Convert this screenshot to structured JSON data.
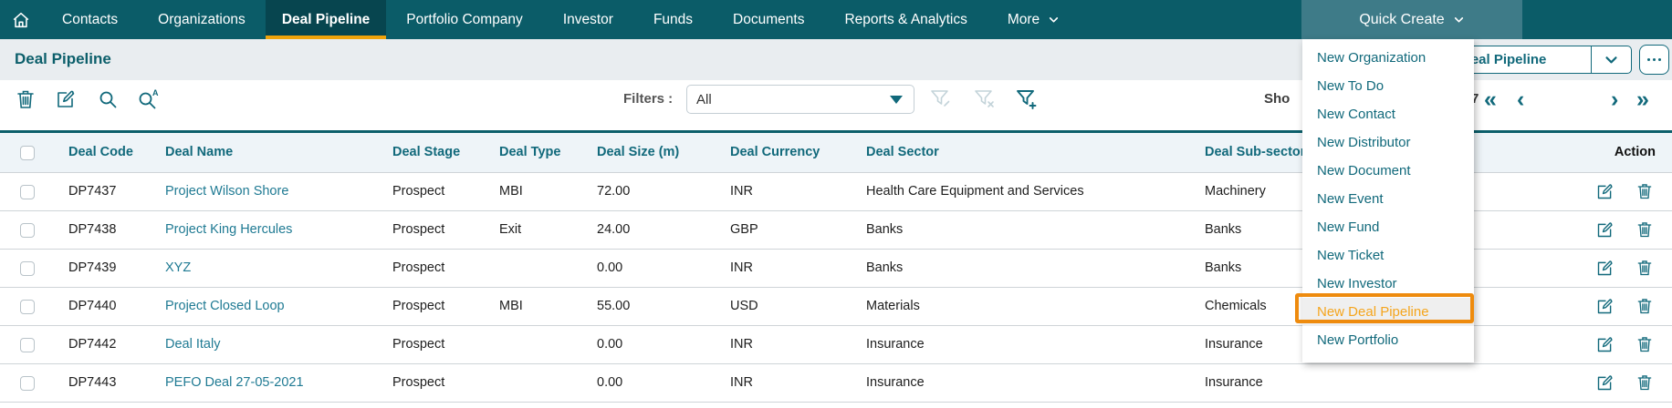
{
  "colors": {
    "nav_background": "#0b5c68",
    "active_tab_background": "#07454f",
    "active_tab_underline": "#f0a30b",
    "open_tab_background": "#3e7b88",
    "accent_teal": "#11697b",
    "link_teal": "#1f7a93",
    "highlight_orange_border": "#ee8b0e",
    "highlight_orange_text": "#f5a51d"
  },
  "nav": {
    "items": [
      {
        "label": "Contacts",
        "active": false,
        "caret": false,
        "open": false
      },
      {
        "label": "Organizations",
        "active": false,
        "caret": false,
        "open": false
      },
      {
        "label": "Deal Pipeline",
        "active": true,
        "caret": false,
        "open": false
      },
      {
        "label": "Portfolio Company",
        "active": false,
        "caret": false,
        "open": false
      },
      {
        "label": "Investor",
        "active": false,
        "caret": false,
        "open": false
      },
      {
        "label": "Funds",
        "active": false,
        "caret": false,
        "open": false
      },
      {
        "label": "Documents",
        "active": false,
        "caret": false,
        "open": false
      },
      {
        "label": "Reports & Analytics",
        "active": false,
        "caret": false,
        "open": false
      },
      {
        "label": "More",
        "active": false,
        "caret": true,
        "open": false
      },
      {
        "label": "Quick Create",
        "active": false,
        "caret": true,
        "open": true
      }
    ]
  },
  "page": {
    "title": "Deal Pipeline"
  },
  "view_selector": {
    "value": "Deal Pipeline"
  },
  "toolbar": {
    "filters_label": "Filters :",
    "filter_value": "All",
    "showing_fragment": "Sho",
    "count_fragment": "7",
    "icons": [
      "delete-icon",
      "edit-icon",
      "search-icon",
      "advanced-search-icon",
      "filter-edit-icon",
      "filter-clear-icon",
      "filter-add-icon"
    ],
    "pagination": [
      "first-page",
      "previous-page",
      "next-page",
      "last-page"
    ]
  },
  "table": {
    "headers": [
      {
        "key": "code",
        "label": "Deal Code"
      },
      {
        "key": "name",
        "label": "Deal Name"
      },
      {
        "key": "stage",
        "label": "Deal Stage"
      },
      {
        "key": "type",
        "label": "Deal Type"
      },
      {
        "key": "size",
        "label": "Deal Size (m)"
      },
      {
        "key": "currency",
        "label": "Deal Currency"
      },
      {
        "key": "sector",
        "label": "Deal Sector"
      },
      {
        "key": "subsector",
        "label": "Deal Sub-sector"
      },
      {
        "key": "action",
        "label": "Action"
      }
    ],
    "rows": [
      {
        "code": "DP7437",
        "name": "Project Wilson Shore",
        "stage": "Prospect",
        "type": "MBI",
        "size": "72.00",
        "currency": "INR",
        "sector": "Health Care Equipment and Services",
        "subsector": "Machinery"
      },
      {
        "code": "DP7438",
        "name": "Project King Hercules",
        "stage": "Prospect",
        "type": "Exit",
        "size": "24.00",
        "currency": "GBP",
        "sector": "Banks",
        "subsector": "Banks"
      },
      {
        "code": "DP7439",
        "name": "XYZ",
        "stage": "Prospect",
        "type": "",
        "size": "0.00",
        "currency": "INR",
        "sector": "Banks",
        "subsector": "Banks"
      },
      {
        "code": "DP7440",
        "name": "Project Closed Loop",
        "stage": "Prospect",
        "type": "MBI",
        "size": "55.00",
        "currency": "USD",
        "sector": "Materials",
        "subsector": "Chemicals"
      },
      {
        "code": "DP7442",
        "name": "Deal Italy",
        "stage": "Prospect",
        "type": "",
        "size": "0.00",
        "currency": "INR",
        "sector": "Insurance",
        "subsector": "Insurance"
      },
      {
        "code": "DP7443",
        "name": "PEFO Deal 27-05-2021",
        "stage": "Prospect",
        "type": "",
        "size": "0.00",
        "currency": "INR",
        "sector": "Insurance",
        "subsector": "Insurance"
      }
    ]
  },
  "quick_create_menu": {
    "items": [
      "New Organization",
      "New To Do",
      "New Contact",
      "New Distributor",
      "New Document",
      "New Event",
      "New Fund",
      "New Ticket",
      "New Investor",
      "New Deal Pipeline",
      "New Portfolio"
    ],
    "highlighted": "New Deal Pipeline"
  }
}
